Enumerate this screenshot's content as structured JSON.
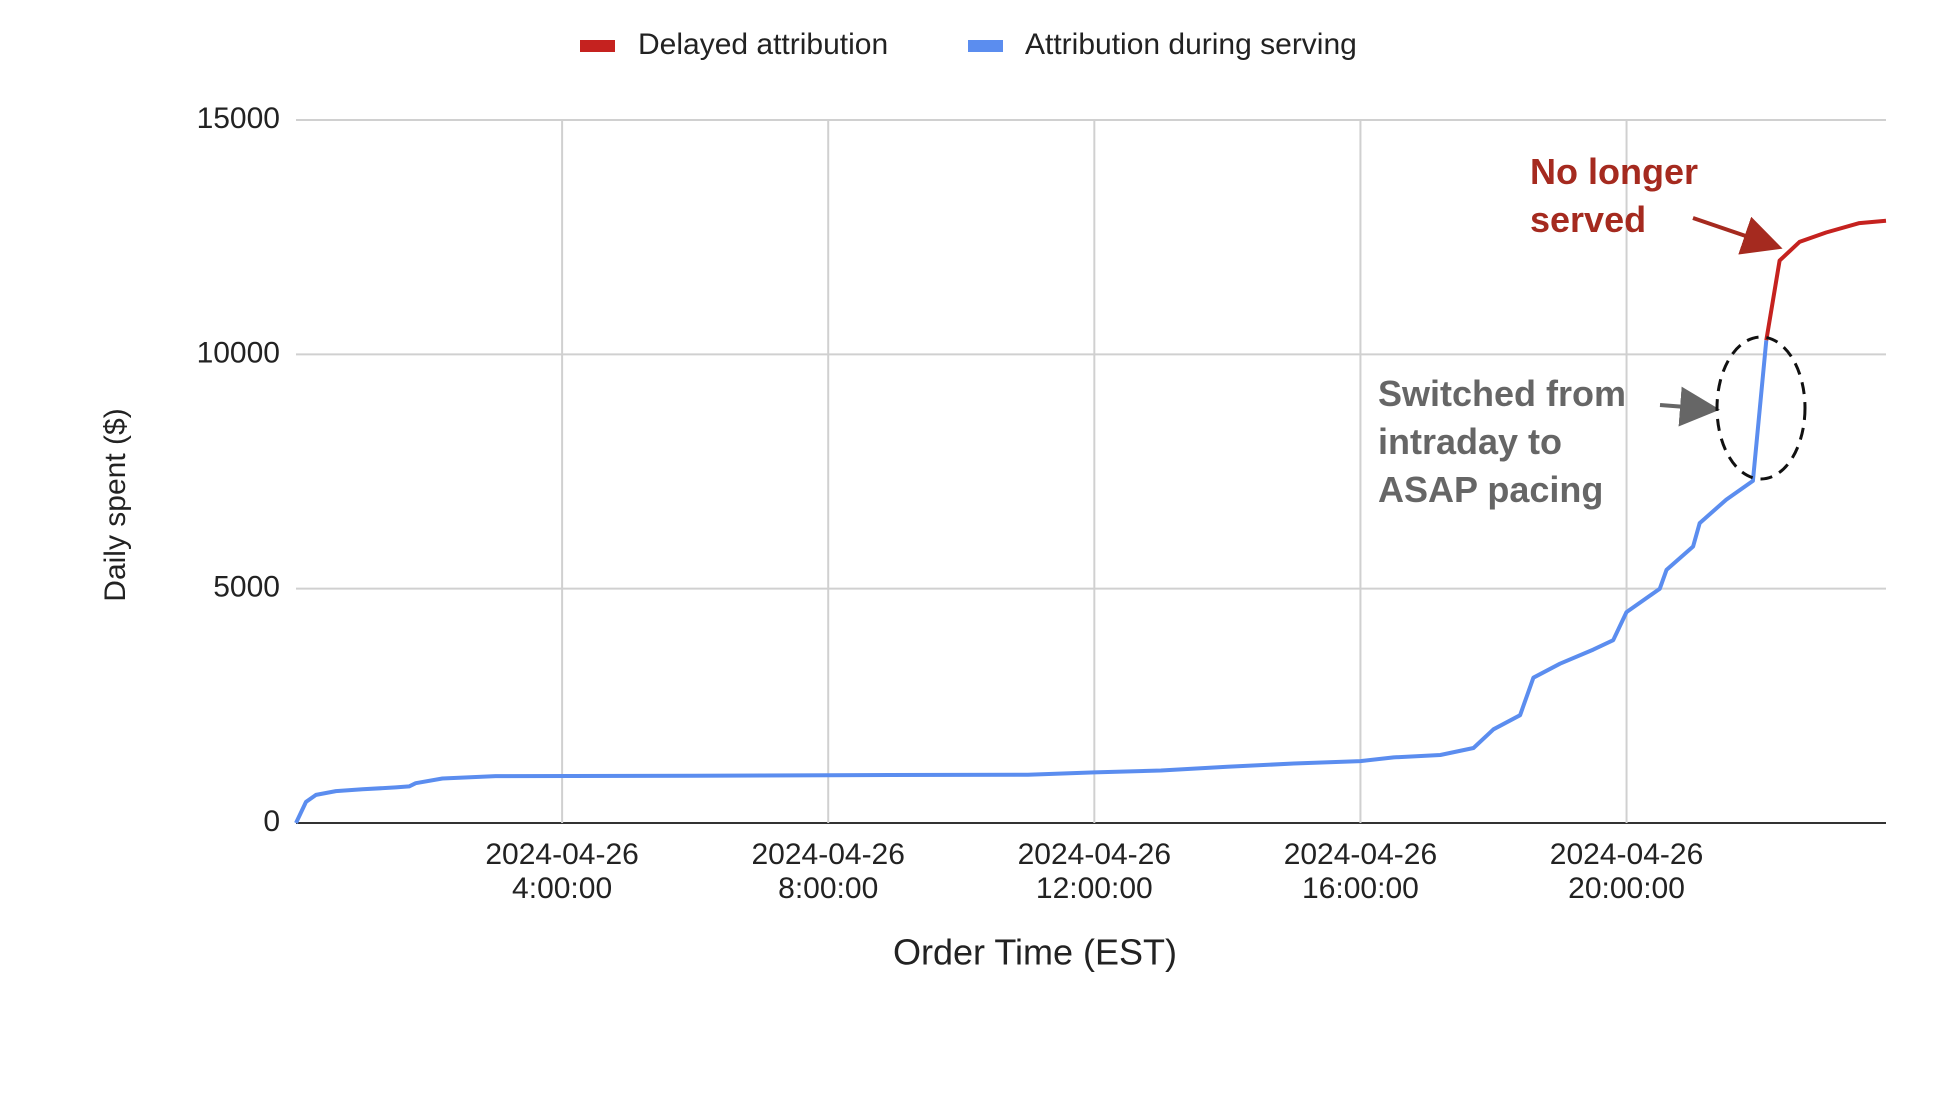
{
  "chart_data": {
    "type": "line",
    "legend": "top",
    "grid": true,
    "x_label": "Order Time (EST)",
    "y_label": "Daily spent ($)",
    "xlim": [
      0,
      23.9
    ],
    "xticks": [
      {
        "value": 4,
        "label": "2024-04-26 4:00:00"
      },
      {
        "value": 8,
        "label": "2024-04-26 8:00:00"
      },
      {
        "value": 12,
        "label": "2024-04-26 12:00:00"
      },
      {
        "value": 16,
        "label": "2024-04-26 16:00:00"
      },
      {
        "value": 20,
        "label": "2024-04-26 20:00:00"
      }
    ],
    "ylim": [
      0,
      15000
    ],
    "yticks": [
      0,
      5000,
      10000,
      15000
    ],
    "series": [
      {
        "name": "Delayed attribution",
        "color": "#c5221f",
        "x": [
          22.1,
          22.3,
          22.6,
          23.0,
          23.5,
          23.9
        ],
        "values": [
          10300,
          12000,
          12400,
          12600,
          12800,
          12850
        ]
      },
      {
        "name": "Attribution during serving",
        "color": "#5b8def",
        "x": [
          0,
          0.15,
          0.3,
          0.6,
          1.0,
          1.5,
          1.7,
          1.8,
          2.2,
          3.0,
          6.0,
          8.0,
          11.0,
          12.0,
          13.0,
          14.0,
          15.0,
          16.0,
          16.5,
          17.2,
          17.7,
          18.0,
          18.4,
          18.6,
          19.0,
          19.5,
          19.8,
          20.0,
          20.4,
          20.5,
          20.6,
          21.0,
          21.1,
          21.5,
          21.9,
          22.1
        ],
        "values": [
          0,
          450,
          600,
          680,
          720,
          760,
          780,
          850,
          950,
          1000,
          1010,
          1020,
          1030,
          1080,
          1120,
          1200,
          1270,
          1320,
          1400,
          1450,
          1600,
          2000,
          2300,
          3100,
          3400,
          3700,
          3900,
          4500,
          4900,
          5000,
          5400,
          5900,
          6400,
          6900,
          7300,
          10300
        ]
      }
    ],
    "annotations": [
      "No longer served",
      "Switched from intraday to ASAP pacing"
    ]
  }
}
